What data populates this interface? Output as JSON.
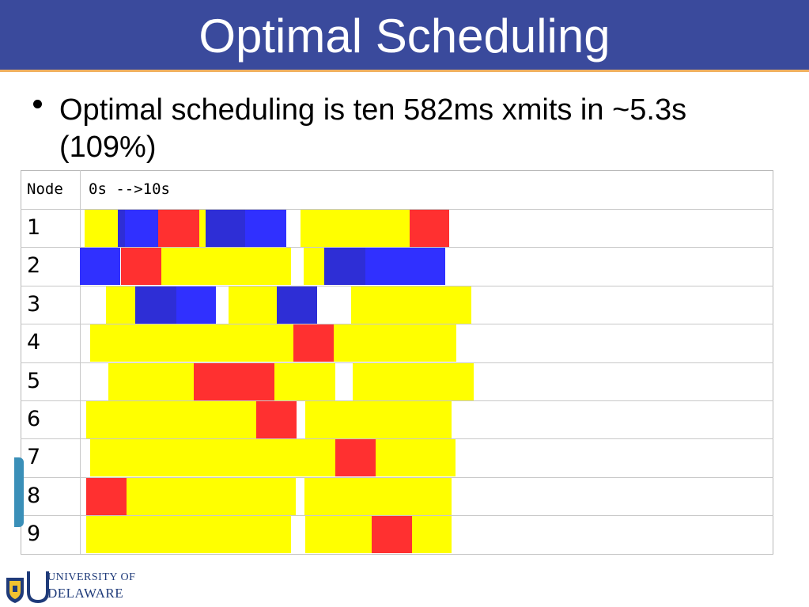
{
  "slide": {
    "title": "Optimal Scheduling",
    "bullet": "Optimal scheduling is ten 582ms xmits in ~5.3s (109%)"
  },
  "table": {
    "header_node": "Node",
    "header_time": "0s -->10s",
    "rows": [
      {
        "node": "1",
        "segments": [
          [
            "y",
            107,
            150
          ],
          [
            "d",
            149,
            200
          ],
          [
            "b",
            158,
            200
          ],
          [
            "r",
            200,
            252
          ],
          [
            "y",
            252,
            260
          ],
          [
            "d",
            260,
            310
          ],
          [
            "b",
            310,
            362
          ],
          [
            "y",
            380,
            518
          ],
          [
            "r",
            518,
            568
          ]
        ]
      },
      {
        "node": "2",
        "segments": [
          [
            "b",
            101,
            152
          ],
          [
            "r",
            153,
            204
          ],
          [
            "y",
            204,
            368
          ],
          [
            "y",
            384,
            410
          ],
          [
            "d",
            410,
            462
          ],
          [
            "b",
            462,
            514
          ],
          [
            "d",
            434,
            462
          ],
          [
            "b",
            514,
            563
          ]
        ]
      },
      {
        "node": "3",
        "segments": [
          [
            "y",
            134,
            171
          ],
          [
            "d",
            171,
            223
          ],
          [
            "b",
            223,
            273
          ],
          [
            "y",
            289,
            350
          ],
          [
            "d",
            350,
            401
          ],
          [
            "y",
            444,
            596
          ]
        ]
      },
      {
        "node": "4",
        "segments": [
          [
            "y",
            114,
            371
          ],
          [
            "r",
            371,
            422
          ],
          [
            "y",
            422,
            577
          ]
        ]
      },
      {
        "node": "5",
        "segments": [
          [
            "y",
            137,
            245
          ],
          [
            "r",
            245,
            347
          ],
          [
            "y",
            347,
            424
          ],
          [
            "y",
            446,
            599
          ]
        ]
      },
      {
        "node": "6",
        "segments": [
          [
            "y",
            109,
            324
          ],
          [
            "r",
            324,
            375
          ],
          [
            "y",
            386,
            571
          ]
        ]
      },
      {
        "node": "7",
        "segments": [
          [
            "y",
            114,
            424
          ],
          [
            "r",
            424,
            475
          ],
          [
            "y",
            475,
            576
          ]
        ]
      },
      {
        "node": "8",
        "segments": [
          [
            "r",
            109,
            160
          ],
          [
            "y",
            160,
            374
          ],
          [
            "y",
            385,
            571
          ]
        ]
      },
      {
        "node": "9",
        "segments": [
          [
            "y",
            109,
            368
          ],
          [
            "y",
            386,
            470
          ],
          [
            "r",
            470,
            521
          ],
          [
            "y",
            521,
            571
          ]
        ]
      }
    ]
  },
  "colors": {
    "title_bar": "#3a4a9c",
    "yellow": "#ffff00",
    "blue": "#3030ff",
    "red": "#ff3030"
  },
  "logo": {
    "line1": "UNIVERSITY OF",
    "line2": "DELAWARE"
  }
}
